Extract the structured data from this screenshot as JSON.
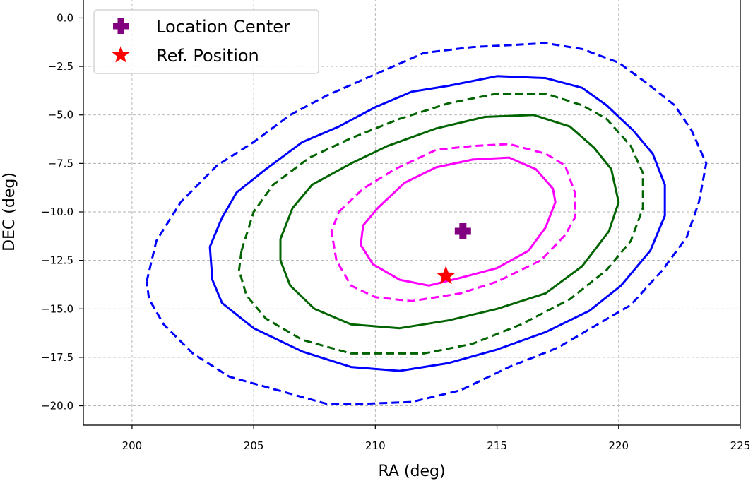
{
  "chart_data": {
    "type": "scatter",
    "title": "",
    "xlabel": "RA (deg)",
    "ylabel": "DEC (deg)",
    "xlim": [
      198,
      225
    ],
    "ylim": [
      -21,
      1
    ],
    "xticks": [
      200,
      205,
      210,
      215,
      220,
      225
    ],
    "xtick_labels": [
      "200",
      "205",
      "210",
      "215",
      "220",
      "225"
    ],
    "yticks": [
      0,
      -2.5,
      -5,
      -7.5,
      -10,
      -12.5,
      -15,
      -17.5,
      -20
    ],
    "ytick_labels": [
      "0.0",
      "−2.5",
      "−5.0",
      "−7.5",
      "−10.0",
      "−12.5",
      "−15.0",
      "−17.5",
      "−20.0"
    ],
    "grid": true,
    "legend_position": "top-left",
    "points": [
      {
        "name": "Location Center",
        "x": 213.6,
        "y": -11.0,
        "marker": "plus",
        "color": "#800080"
      },
      {
        "name": "Ref. Position",
        "x": 212.9,
        "y": -13.3,
        "marker": "star",
        "color": "#ff0000"
      }
    ],
    "contours": [
      {
        "name": "magenta-solid",
        "color": "#ff00ff",
        "style": "solid",
        "points": [
          [
            210.1,
            -9.8
          ],
          [
            211.2,
            -8.5
          ],
          [
            212.5,
            -7.7
          ],
          [
            214.0,
            -7.3
          ],
          [
            215.5,
            -7.2
          ],
          [
            216.6,
            -7.8
          ],
          [
            217.3,
            -8.8
          ],
          [
            217.4,
            -9.5
          ],
          [
            217.0,
            -10.8
          ],
          [
            216.3,
            -12.0
          ],
          [
            215.0,
            -12.9
          ],
          [
            213.5,
            -13.4
          ],
          [
            212.2,
            -13.8
          ],
          [
            211.0,
            -13.5
          ],
          [
            209.9,
            -12.7
          ],
          [
            209.4,
            -11.7
          ],
          [
            209.5,
            -10.7
          ],
          [
            210.1,
            -9.8
          ]
        ]
      },
      {
        "name": "magenta-dashed",
        "color": "#ff00ff",
        "style": "dashed",
        "points": [
          [
            208.5,
            -10.0
          ],
          [
            209.5,
            -8.8
          ],
          [
            210.8,
            -7.8
          ],
          [
            212.5,
            -6.8
          ],
          [
            214.0,
            -6.6
          ],
          [
            215.5,
            -6.5
          ],
          [
            217.0,
            -7.0
          ],
          [
            217.8,
            -7.6
          ],
          [
            218.2,
            -9.0
          ],
          [
            218.2,
            -10.3
          ],
          [
            217.8,
            -11.2
          ],
          [
            216.8,
            -12.5
          ],
          [
            215.0,
            -13.6
          ],
          [
            213.5,
            -14.2
          ],
          [
            211.5,
            -14.6
          ],
          [
            210.0,
            -14.4
          ],
          [
            209.0,
            -13.8
          ],
          [
            208.4,
            -12.5
          ],
          [
            208.2,
            -11.0
          ],
          [
            208.5,
            -10.0
          ]
        ]
      },
      {
        "name": "green-solid",
        "color": "#006400",
        "style": "solid",
        "points": [
          [
            206.1,
            -11.4
          ],
          [
            206.6,
            -9.8
          ],
          [
            207.4,
            -8.6
          ],
          [
            209.0,
            -7.5
          ],
          [
            210.5,
            -6.6
          ],
          [
            212.5,
            -5.7
          ],
          [
            214.5,
            -5.1
          ],
          [
            216.5,
            -5.0
          ],
          [
            218.0,
            -5.6
          ],
          [
            219.0,
            -6.7
          ],
          [
            219.7,
            -7.8
          ],
          [
            220.0,
            -9.5
          ],
          [
            219.6,
            -11.0
          ],
          [
            218.5,
            -12.8
          ],
          [
            217.0,
            -14.2
          ],
          [
            215.0,
            -15.0
          ],
          [
            213.0,
            -15.6
          ],
          [
            211.0,
            -16.0
          ],
          [
            209.0,
            -15.8
          ],
          [
            207.5,
            -15.0
          ],
          [
            206.5,
            -13.8
          ],
          [
            206.1,
            -12.5
          ],
          [
            206.1,
            -11.4
          ]
        ]
      },
      {
        "name": "green-dashed",
        "color": "#006400",
        "style": "dashed",
        "points": [
          [
            204.5,
            -12.0
          ],
          [
            205.0,
            -10.0
          ],
          [
            205.8,
            -8.6
          ],
          [
            207.3,
            -7.2
          ],
          [
            209.0,
            -6.2
          ],
          [
            211.0,
            -5.2
          ],
          [
            213.0,
            -4.4
          ],
          [
            215.0,
            -3.9
          ],
          [
            217.0,
            -3.9
          ],
          [
            218.5,
            -4.5
          ],
          [
            219.5,
            -5.2
          ],
          [
            220.5,
            -6.6
          ],
          [
            221.0,
            -8.0
          ],
          [
            221.0,
            -9.8
          ],
          [
            220.5,
            -11.5
          ],
          [
            219.5,
            -13.0
          ],
          [
            218.0,
            -14.5
          ],
          [
            216.0,
            -15.8
          ],
          [
            214.0,
            -16.8
          ],
          [
            212.0,
            -17.3
          ],
          [
            209.0,
            -17.3
          ],
          [
            207.0,
            -16.6
          ],
          [
            205.5,
            -15.5
          ],
          [
            204.7,
            -14.3
          ],
          [
            204.4,
            -13.0
          ],
          [
            204.5,
            -12.0
          ]
        ]
      },
      {
        "name": "blue-solid",
        "color": "#0000ff",
        "style": "solid",
        "points": [
          [
            203.2,
            -11.8
          ],
          [
            203.7,
            -10.3
          ],
          [
            204.3,
            -9.0
          ],
          [
            205.5,
            -7.8
          ],
          [
            207.0,
            -6.4
          ],
          [
            208.5,
            -5.6
          ],
          [
            210.0,
            -4.6
          ],
          [
            211.5,
            -3.8
          ],
          [
            213.0,
            -3.5
          ],
          [
            215.0,
            -3.0
          ],
          [
            217.0,
            -3.1
          ],
          [
            218.5,
            -3.6
          ],
          [
            219.5,
            -4.5
          ],
          [
            220.6,
            -5.8
          ],
          [
            221.4,
            -7.0
          ],
          [
            221.9,
            -8.6
          ],
          [
            221.9,
            -10.2
          ],
          [
            221.3,
            -12.0
          ],
          [
            220.1,
            -13.8
          ],
          [
            218.8,
            -15.1
          ],
          [
            217.0,
            -16.2
          ],
          [
            215.0,
            -17.1
          ],
          [
            213.0,
            -17.8
          ],
          [
            211.0,
            -18.2
          ],
          [
            209.0,
            -18.0
          ],
          [
            207.0,
            -17.2
          ],
          [
            205.0,
            -16.0
          ],
          [
            203.7,
            -14.7
          ],
          [
            203.3,
            -13.5
          ],
          [
            203.2,
            -11.8
          ]
        ]
      },
      {
        "name": "blue-dashed",
        "color": "#0000ff",
        "style": "dashed",
        "points": [
          [
            200.6,
            -13.6
          ],
          [
            201.0,
            -11.5
          ],
          [
            202.0,
            -9.5
          ],
          [
            203.5,
            -7.6
          ],
          [
            205.0,
            -6.4
          ],
          [
            206.5,
            -5.0
          ],
          [
            208.0,
            -4.0
          ],
          [
            210.0,
            -2.9
          ],
          [
            212.0,
            -1.8
          ],
          [
            214.0,
            -1.5
          ],
          [
            215.5,
            -1.4
          ],
          [
            217.0,
            -1.3
          ],
          [
            218.5,
            -1.6
          ],
          [
            220.0,
            -2.3
          ],
          [
            221.2,
            -3.4
          ],
          [
            222.3,
            -4.5
          ],
          [
            223.0,
            -5.8
          ],
          [
            223.6,
            -7.5
          ],
          [
            223.3,
            -9.5
          ],
          [
            222.8,
            -11.3
          ],
          [
            221.8,
            -13.0
          ],
          [
            220.5,
            -14.8
          ],
          [
            219.0,
            -15.9
          ],
          [
            217.5,
            -17.0
          ],
          [
            215.5,
            -18.0
          ],
          [
            213.5,
            -19.2
          ],
          [
            211.5,
            -19.8
          ],
          [
            209.5,
            -19.9
          ],
          [
            208.0,
            -19.9
          ],
          [
            206.0,
            -19.2
          ],
          [
            204.0,
            -18.5
          ],
          [
            202.5,
            -17.3
          ],
          [
            201.3,
            -15.8
          ],
          [
            200.7,
            -14.5
          ],
          [
            200.6,
            -13.6
          ]
        ]
      }
    ]
  }
}
